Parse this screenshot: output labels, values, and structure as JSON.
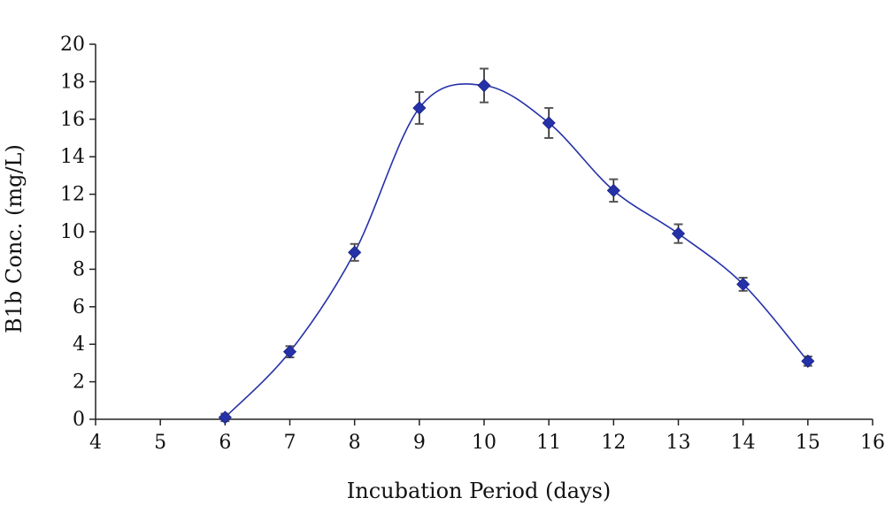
{
  "chart_data": {
    "type": "line",
    "smooth": true,
    "title": "",
    "xlabel": "Incubation Period (days)",
    "ylabel": "B1b Conc. (mg/L)",
    "xlim": [
      4,
      16
    ],
    "ylim": [
      0,
      20
    ],
    "x_ticks": [
      4,
      5,
      6,
      7,
      8,
      9,
      10,
      11,
      12,
      13,
      14,
      15,
      16
    ],
    "y_ticks": [
      0,
      2,
      4,
      6,
      8,
      10,
      12,
      14,
      16,
      18,
      20
    ],
    "grid": false,
    "legend": "none",
    "series": [
      {
        "x": [
          6,
          7,
          8,
          9,
          10,
          11,
          12,
          13,
          14,
          15
        ],
        "y": [
          0.1,
          3.6,
          8.9,
          16.6,
          17.8,
          15.8,
          12.2,
          9.9,
          7.2,
          3.1
        ],
        "error": [
          0.2,
          0.3,
          0.45,
          0.85,
          0.9,
          0.8,
          0.6,
          0.5,
          0.35,
          0.25
        ],
        "color": "#2531a8",
        "marker": "diamond"
      }
    ]
  }
}
